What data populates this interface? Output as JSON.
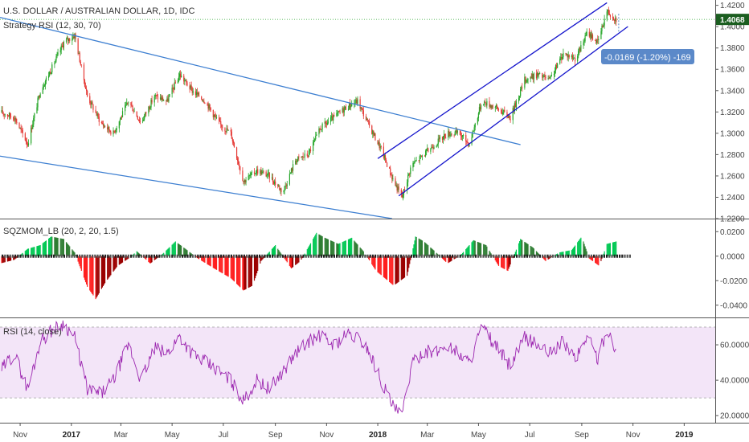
{
  "header": {
    "title": "U.S. DOLLAR / AUSTRALIAN DOLLAR, 1D, IDC",
    "strategy": "Strategy RSI (12, 30, 70)",
    "price_tag": "1.4068",
    "measure_label": "-0.0169 (-1.20%) -169"
  },
  "colors": {
    "up": "#26a629",
    "down": "#e53935",
    "trendline": "#3d7fd1",
    "channel": "#1515cc",
    "rsi": "#9c27b0",
    "rsi_band": "#f3e5f8",
    "price_tag_bg": "#1b5e20",
    "measure_bg": "#5b89c9"
  },
  "chart_data": [
    {
      "type": "candlestick",
      "title": "U.S. DOLLAR / AUSTRALIAN DOLLAR, 1D, IDC",
      "ylim": [
        1.22,
        1.425
      ],
      "y_ticks": [
        "1.4200",
        "1.4000",
        "1.3800",
        "1.3600",
        "1.3400",
        "1.3200",
        "1.3000",
        "1.2800",
        "1.2600",
        "1.2400",
        "1.2200"
      ],
      "y_tick_values": [
        1.42,
        1.4,
        1.38,
        1.36,
        1.34,
        1.32,
        1.3,
        1.28,
        1.26,
        1.24,
        1.22
      ],
      "last_price": 1.4068,
      "anchor_closes": [
        [
          "2016-10-08",
          1.32
        ],
        [
          "2016-10-25",
          1.315
        ],
        [
          "2016-11-10",
          1.29
        ],
        [
          "2016-11-25",
          1.34
        ],
        [
          "2016-12-08",
          1.36
        ],
        [
          "2016-12-23",
          1.385
        ],
        [
          "2017-01-05",
          1.392
        ],
        [
          "2017-01-20",
          1.335
        ],
        [
          "2017-02-05",
          1.31
        ],
        [
          "2017-02-20",
          1.3
        ],
        [
          "2017-03-10",
          1.33
        ],
        [
          "2017-03-25",
          1.31
        ],
        [
          "2017-04-10",
          1.335
        ],
        [
          "2017-04-25",
          1.33
        ],
        [
          "2017-05-10",
          1.355
        ],
        [
          "2017-05-25",
          1.34
        ],
        [
          "2017-06-10",
          1.33
        ],
        [
          "2017-06-25",
          1.31
        ],
        [
          "2017-07-10",
          1.3
        ],
        [
          "2017-07-25",
          1.255
        ],
        [
          "2017-08-10",
          1.265
        ],
        [
          "2017-08-25",
          1.26
        ],
        [
          "2017-09-10",
          1.245
        ],
        [
          "2017-09-25",
          1.275
        ],
        [
          "2017-10-10",
          1.28
        ],
        [
          "2017-10-25",
          1.305
        ],
        [
          "2017-11-10",
          1.315
        ],
        [
          "2017-11-25",
          1.325
        ],
        [
          "2017-12-08",
          1.33
        ],
        [
          "2017-12-20",
          1.31
        ],
        [
          "2018-01-05",
          1.285
        ],
        [
          "2018-01-20",
          1.255
        ],
        [
          "2018-01-30",
          1.24
        ],
        [
          "2018-02-10",
          1.27
        ],
        [
          "2018-02-25",
          1.28
        ],
        [
          "2018-03-10",
          1.29
        ],
        [
          "2018-03-25",
          1.3
        ],
        [
          "2018-04-08",
          1.3
        ],
        [
          "2018-04-20",
          1.29
        ],
        [
          "2018-05-05",
          1.33
        ],
        [
          "2018-05-20",
          1.325
        ],
        [
          "2018-06-08",
          1.315
        ],
        [
          "2018-06-25",
          1.35
        ],
        [
          "2018-07-10",
          1.355
        ],
        [
          "2018-07-25",
          1.35
        ],
        [
          "2018-08-10",
          1.375
        ],
        [
          "2018-08-25",
          1.37
        ],
        [
          "2018-09-08",
          1.395
        ],
        [
          "2018-09-20",
          1.385
        ],
        [
          "2018-10-01",
          1.415
        ],
        [
          "2018-10-12",
          1.4068
        ]
      ]
    },
    {
      "type": "histogram",
      "title": "SQZMOM_LB (20, 2, 20, 1.5)",
      "ylim": [
        -0.05,
        0.03
      ],
      "y_ticks": [
        "0.0200",
        "0.0000",
        "-0.0200",
        "-0.0400"
      ],
      "y_tick_values": [
        0.02,
        0.0,
        -0.02,
        -0.04
      ],
      "anchors": [
        [
          "2016-10-08",
          -0.006
        ],
        [
          "2016-10-25",
          -0.003
        ],
        [
          "2016-11-10",
          0.006
        ],
        [
          "2016-11-25",
          0.009
        ],
        [
          "2016-12-08",
          0.016
        ],
        [
          "2016-12-23",
          0.014
        ],
        [
          "2017-01-05",
          0.003
        ],
        [
          "2017-01-20",
          -0.025
        ],
        [
          "2017-01-30",
          -0.035
        ],
        [
          "2017-02-10",
          -0.022
        ],
        [
          "2017-02-25",
          -0.008
        ],
        [
          "2017-03-10",
          -0.002
        ],
        [
          "2017-03-20",
          0.004
        ],
        [
          "2017-04-05",
          -0.006
        ],
        [
          "2017-04-20",
          0.002
        ],
        [
          "2017-05-05",
          0.012
        ],
        [
          "2017-05-15",
          0.007
        ],
        [
          "2017-06-01",
          -0.002
        ],
        [
          "2017-06-20",
          -0.01
        ],
        [
          "2017-07-10",
          -0.018
        ],
        [
          "2017-07-25",
          -0.028
        ],
        [
          "2017-08-05",
          -0.024
        ],
        [
          "2017-08-15",
          -0.004
        ],
        [
          "2017-09-01",
          0.009
        ],
        [
          "2017-09-20",
          -0.01
        ],
        [
          "2017-10-01",
          -0.004
        ],
        [
          "2017-10-20",
          0.019
        ],
        [
          "2017-10-30",
          0.015
        ],
        [
          "2017-11-15",
          0.01
        ],
        [
          "2017-12-01",
          0.015
        ],
        [
          "2017-12-15",
          0.004
        ],
        [
          "2017-12-30",
          -0.012
        ],
        [
          "2018-01-20",
          -0.024
        ],
        [
          "2018-02-05",
          -0.016
        ],
        [
          "2018-02-15",
          0.016
        ],
        [
          "2018-02-25",
          0.012
        ],
        [
          "2018-03-10",
          0.004
        ],
        [
          "2018-03-25",
          -0.006
        ],
        [
          "2018-04-10",
          0.001
        ],
        [
          "2018-04-25",
          0.013
        ],
        [
          "2018-05-10",
          0.009
        ],
        [
          "2018-05-25",
          -0.008
        ],
        [
          "2018-06-05",
          -0.012
        ],
        [
          "2018-06-20",
          0.014
        ],
        [
          "2018-07-05",
          0.007
        ],
        [
          "2018-07-20",
          -0.004
        ],
        [
          "2018-08-05",
          0.003
        ],
        [
          "2018-08-20",
          0.005
        ],
        [
          "2018-09-01",
          0.016
        ],
        [
          "2018-09-10",
          -0.002
        ],
        [
          "2018-09-22",
          -0.008
        ],
        [
          "2018-10-01",
          0.01
        ],
        [
          "2018-10-12",
          0.012
        ]
      ]
    },
    {
      "type": "line",
      "title": "RSI (14, close)",
      "ylim": [
        16,
        75
      ],
      "y_ticks": [
        "60.0000",
        "40.0000",
        "20.0000"
      ],
      "y_tick_values": [
        60,
        40,
        20
      ],
      "band": [
        30,
        70
      ],
      "anchors": [
        [
          "2016-10-08",
          45
        ],
        [
          "2016-10-25",
          55
        ],
        [
          "2016-11-10",
          35
        ],
        [
          "2016-11-25",
          62
        ],
        [
          "2016-12-08",
          68
        ],
        [
          "2016-12-23",
          72
        ],
        [
          "2017-01-05",
          64
        ],
        [
          "2017-01-20",
          35
        ],
        [
          "2017-02-05",
          32
        ],
        [
          "2017-02-20",
          40
        ],
        [
          "2017-03-10",
          60
        ],
        [
          "2017-03-25",
          40
        ],
        [
          "2017-04-10",
          58
        ],
        [
          "2017-04-25",
          55
        ],
        [
          "2017-05-10",
          65
        ],
        [
          "2017-05-25",
          55
        ],
        [
          "2017-06-10",
          50
        ],
        [
          "2017-06-25",
          45
        ],
        [
          "2017-07-10",
          40
        ],
        [
          "2017-07-25",
          28
        ],
        [
          "2017-08-10",
          40
        ],
        [
          "2017-08-25",
          35
        ],
        [
          "2017-09-10",
          45
        ],
        [
          "2017-09-25",
          55
        ],
        [
          "2017-10-10",
          62
        ],
        [
          "2017-10-25",
          65
        ],
        [
          "2017-11-10",
          60
        ],
        [
          "2017-11-25",
          66
        ],
        [
          "2017-12-08",
          64
        ],
        [
          "2017-12-20",
          58
        ],
        [
          "2018-01-05",
          40
        ],
        [
          "2018-01-20",
          24
        ],
        [
          "2018-01-30",
          20
        ],
        [
          "2018-02-10",
          48
        ],
        [
          "2018-02-25",
          57
        ],
        [
          "2018-03-10",
          55
        ],
        [
          "2018-03-25",
          60
        ],
        [
          "2018-04-08",
          55
        ],
        [
          "2018-04-20",
          50
        ],
        [
          "2018-05-05",
          70
        ],
        [
          "2018-05-20",
          60
        ],
        [
          "2018-06-08",
          48
        ],
        [
          "2018-06-25",
          64
        ],
        [
          "2018-07-10",
          60
        ],
        [
          "2018-07-25",
          55
        ],
        [
          "2018-08-10",
          62
        ],
        [
          "2018-08-25",
          52
        ],
        [
          "2018-09-08",
          66
        ],
        [
          "2018-09-20",
          52
        ],
        [
          "2018-10-01",
          69
        ],
        [
          "2018-10-12",
          56
        ]
      ]
    }
  ],
  "x_axis": {
    "labels": [
      "Nov",
      "2017",
      "Mar",
      "May",
      "Jul",
      "Sep",
      "Nov",
      "2018",
      "Mar",
      "May",
      "Jul",
      "Sep",
      "Nov",
      "2019"
    ],
    "dates": [
      "2016-11-01",
      "2017-01-01",
      "2017-03-01",
      "2017-05-01",
      "2017-07-01",
      "2017-09-01",
      "2017-11-01",
      "2018-01-01",
      "2018-03-01",
      "2018-05-01",
      "2018-07-01",
      "2018-09-01",
      "2018-11-01",
      "2019-01-01"
    ],
    "bold": [
      "2017",
      "2018",
      "2019"
    ],
    "range": [
      "2016-10-08",
      "2019-02-07"
    ]
  },
  "drawings": {
    "trendlines": [
      [
        [
          "2016-10-08",
          1.4087
        ],
        [
          "2018-06-20",
          1.2893
        ]
      ],
      [
        [
          "2016-10-08",
          1.2786
        ],
        [
          "2018-01-18",
          1.22
        ]
      ]
    ],
    "channel": [
      [
        [
          "2018-01-01",
          1.2763
        ],
        [
          "2018-10-01",
          1.4224
        ]
      ],
      [
        [
          "2018-01-26",
          1.2413
        ],
        [
          "2018-10-26",
          1.4001
        ]
      ]
    ],
    "measure_span": [
      "2018-10-15",
      1.412,
      1.3951
    ]
  }
}
